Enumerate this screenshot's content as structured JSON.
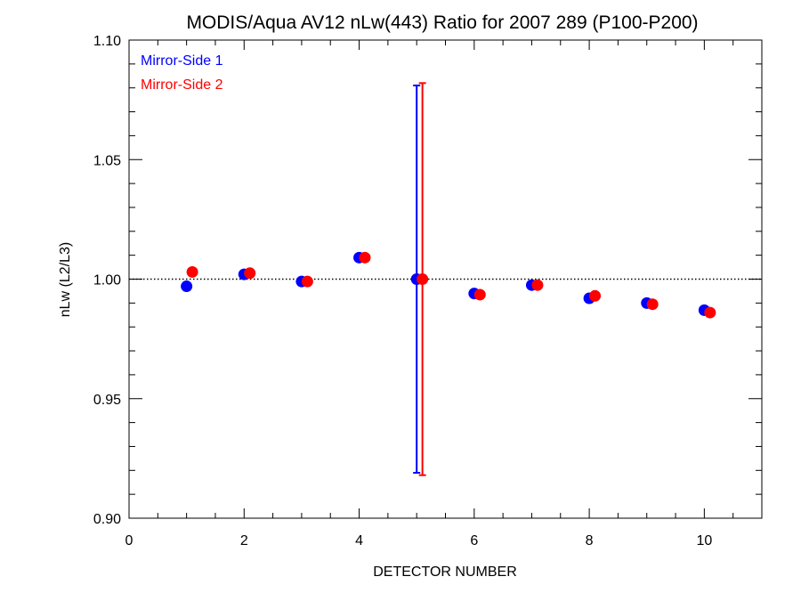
{
  "chart_data": {
    "type": "scatter",
    "title": "MODIS/Aqua AV12 nLw(443) Ratio for 2007 289 (P100-P200)",
    "xlabel": "DETECTOR NUMBER",
    "ylabel": "nLw (L2/L3)",
    "xlim": [
      0,
      11
    ],
    "ylim": [
      0.9,
      1.1
    ],
    "x_ticks": [
      "0",
      "2",
      "4",
      "6",
      "8",
      "10"
    ],
    "y_ticks": [
      "0.90",
      "0.95",
      "1.00",
      "1.05",
      "1.10"
    ],
    "reference_line": {
      "y": 1.0,
      "style": "dotted"
    },
    "legend_position": "top-left",
    "series": [
      {
        "name": "Mirror-Side 1",
        "color": "#0000ff",
        "x": [
          1,
          2,
          3,
          4,
          5,
          6,
          7,
          8,
          9,
          10
        ],
        "y": [
          0.997,
          1.002,
          0.999,
          1.009,
          1.0,
          0.994,
          0.9975,
          0.992,
          0.99,
          0.987
        ],
        "error_bars": [
          {
            "x": 5,
            "low": 0.919,
            "high": 1.081
          }
        ]
      },
      {
        "name": "Mirror-Side 2",
        "color": "#ff0000",
        "x": [
          1.1,
          2.1,
          3.1,
          4.1,
          5.1,
          6.1,
          7.1,
          8.1,
          9.1,
          10.1
        ],
        "y": [
          1.003,
          1.0025,
          0.999,
          1.009,
          1.0,
          0.9935,
          0.9975,
          0.993,
          0.9895,
          0.986
        ],
        "error_bars": [
          {
            "x": 5.1,
            "low": 0.918,
            "high": 1.082
          }
        ]
      }
    ]
  }
}
